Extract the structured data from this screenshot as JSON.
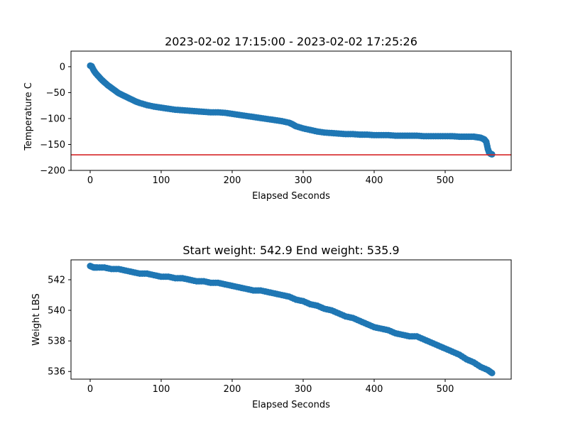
{
  "chart_data": [
    {
      "type": "scatter",
      "title": "2023-02-02 17:15:00 - 2023-02-02 17:25:26",
      "xlabel": "Elapsed Seconds",
      "ylabel": "Temperature C",
      "xlim": [
        -27,
        593
      ],
      "ylim": [
        -200,
        30
      ],
      "xticks": [
        0,
        100,
        200,
        300,
        400,
        500
      ],
      "yticks": [
        0,
        -50,
        -100,
        -150,
        -200
      ],
      "ytick_labels": [
        "0",
        "−50",
        "−100",
        "−150",
        "−200"
      ],
      "grid": false,
      "point_color": "#1f77b4",
      "reference_line": {
        "y": -170,
        "color": "#d62728"
      },
      "x": [
        0,
        2,
        5,
        8,
        12,
        16,
        20,
        25,
        30,
        35,
        40,
        46,
        52,
        58,
        64,
        70,
        80,
        90,
        100,
        110,
        120,
        130,
        140,
        150,
        160,
        170,
        180,
        190,
        200,
        210,
        220,
        230,
        240,
        250,
        260,
        270,
        280,
        285,
        290,
        300,
        310,
        320,
        330,
        340,
        350,
        360,
        370,
        380,
        390,
        400,
        410,
        420,
        430,
        440,
        450,
        460,
        470,
        480,
        490,
        500,
        510,
        520,
        530,
        540,
        545,
        550,
        555,
        558,
        560,
        562,
        564,
        566
      ],
      "y": [
        2,
        1,
        -7,
        -13,
        -19,
        -25,
        -30,
        -36,
        -41,
        -46,
        -51,
        -55,
        -59,
        -63,
        -67,
        -70,
        -74,
        -77,
        -79,
        -81,
        -83,
        -84,
        -85,
        -86,
        -87,
        -88,
        -88,
        -89,
        -91,
        -93,
        -95,
        -97,
        -99,
        -101,
        -103,
        -105,
        -108,
        -111,
        -115,
        -119,
        -122,
        -125,
        -127,
        -128,
        -129,
        -130,
        -130,
        -131,
        -131,
        -132,
        -132,
        -132,
        -133,
        -133,
        -133,
        -133,
        -134,
        -134,
        -134,
        -134,
        -134,
        -135,
        -135,
        -135,
        -136,
        -137,
        -140,
        -145,
        -158,
        -166,
        -168,
        -169
      ]
    },
    {
      "type": "scatter",
      "title": "Start weight: 542.9 End weight: 535.9",
      "xlabel": "Elapsed Seconds",
      "ylabel": "Weight LBS",
      "xlim": [
        -27,
        593
      ],
      "ylim": [
        535.5,
        543.3
      ],
      "xticks": [
        0,
        100,
        200,
        300,
        400,
        500
      ],
      "yticks": [
        536,
        538,
        540,
        542
      ],
      "grid": false,
      "point_color": "#1f77b4",
      "x": [
        0,
        5,
        10,
        20,
        30,
        40,
        50,
        60,
        70,
        80,
        90,
        100,
        110,
        120,
        130,
        140,
        150,
        160,
        170,
        180,
        190,
        200,
        210,
        220,
        230,
        240,
        250,
        260,
        270,
        280,
        290,
        300,
        310,
        320,
        330,
        340,
        350,
        360,
        370,
        380,
        390,
        400,
        410,
        420,
        430,
        440,
        450,
        460,
        470,
        480,
        490,
        500,
        510,
        520,
        530,
        540,
        550,
        560,
        566
      ],
      "y": [
        542.9,
        542.8,
        542.8,
        542.8,
        542.7,
        542.7,
        542.6,
        542.5,
        542.4,
        542.4,
        542.3,
        542.2,
        542.2,
        542.1,
        542.1,
        542.0,
        541.9,
        541.9,
        541.8,
        541.8,
        541.7,
        541.6,
        541.5,
        541.4,
        541.3,
        541.3,
        541.2,
        541.1,
        541.0,
        540.9,
        540.7,
        540.6,
        540.4,
        540.3,
        540.1,
        540.0,
        539.8,
        539.6,
        539.5,
        539.3,
        539.1,
        538.9,
        538.8,
        538.7,
        538.5,
        538.4,
        538.3,
        538.3,
        538.1,
        537.9,
        537.7,
        537.5,
        537.3,
        537.1,
        536.8,
        536.6,
        536.3,
        536.1,
        535.9
      ]
    }
  ]
}
